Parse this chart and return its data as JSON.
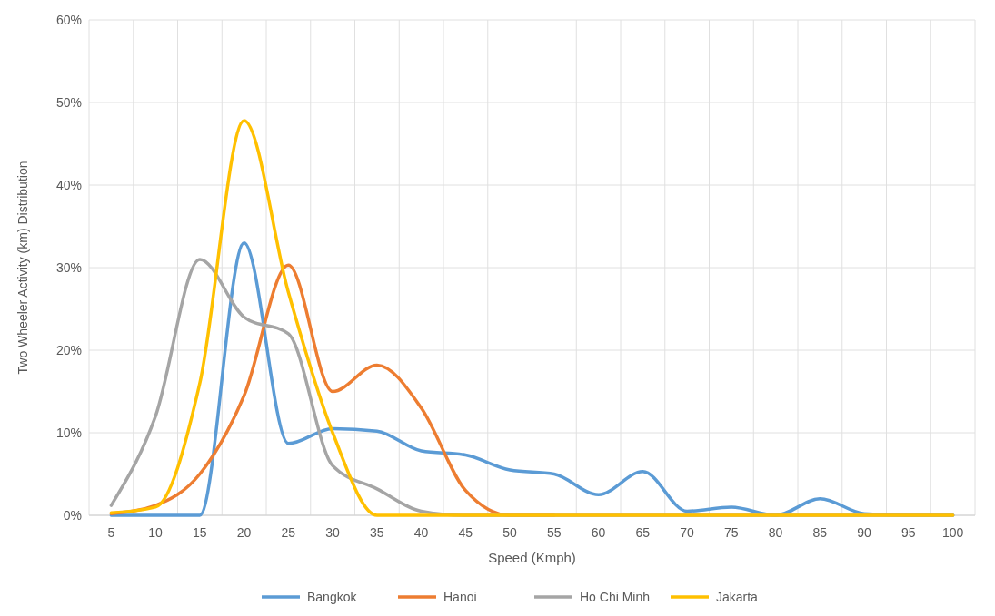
{
  "chart_data": {
    "type": "line",
    "xlabel": "Speed (Kmph)",
    "ylabel": "Two Wheeler Activity (km) Distribution",
    "categories": [
      "5",
      "10",
      "15",
      "20",
      "25",
      "30",
      "35",
      "40",
      "45",
      "50",
      "55",
      "60",
      "65",
      "70",
      "75",
      "80",
      "85",
      "90",
      "95",
      "100"
    ],
    "series": [
      {
        "name": "Bangkok",
        "color": "#5b9bd5",
        "values": [
          0,
          0,
          0,
          33,
          8.7,
          10.5,
          10.2,
          7.8,
          7.3,
          5.5,
          5,
          2.5,
          5.3,
          0.5,
          1,
          0,
          2,
          0.2,
          0,
          0
        ]
      },
      {
        "name": "Hanoi",
        "color": "#ed7d31",
        "values": [
          0.2,
          1.2,
          5,
          14.5,
          30.3,
          15,
          18.2,
          13,
          3,
          0,
          0,
          null,
          null,
          null,
          null,
          null,
          null,
          null,
          null,
          null
        ]
      },
      {
        "name": "Ho Chi Minh",
        "color": "#a5a5a5",
        "values": [
          1.2,
          12,
          31,
          24,
          22,
          6,
          3.2,
          0.5,
          0,
          0,
          0,
          0,
          0,
          0,
          0,
          0,
          0,
          0,
          0,
          0
        ]
      },
      {
        "name": "Jakarta",
        "color": "#ffc000",
        "values": [
          0.3,
          1,
          16,
          47.8,
          27,
          10,
          0,
          0,
          0,
          0,
          0,
          0,
          0,
          0,
          0,
          0,
          0,
          0,
          0,
          0
        ]
      }
    ],
    "ylim": [
      0,
      60
    ],
    "yticks": [
      {
        "value": 0,
        "label": "0%"
      },
      {
        "value": 10,
        "label": "10%"
      },
      {
        "value": 20,
        "label": "20%"
      },
      {
        "value": 30,
        "label": "30%"
      },
      {
        "value": 40,
        "label": "40%"
      },
      {
        "value": 50,
        "label": "50%"
      },
      {
        "value": 60,
        "label": "60%"
      }
    ],
    "grid": true,
    "legend": "bottom",
    "marker": "none",
    "line_style": "solid"
  }
}
